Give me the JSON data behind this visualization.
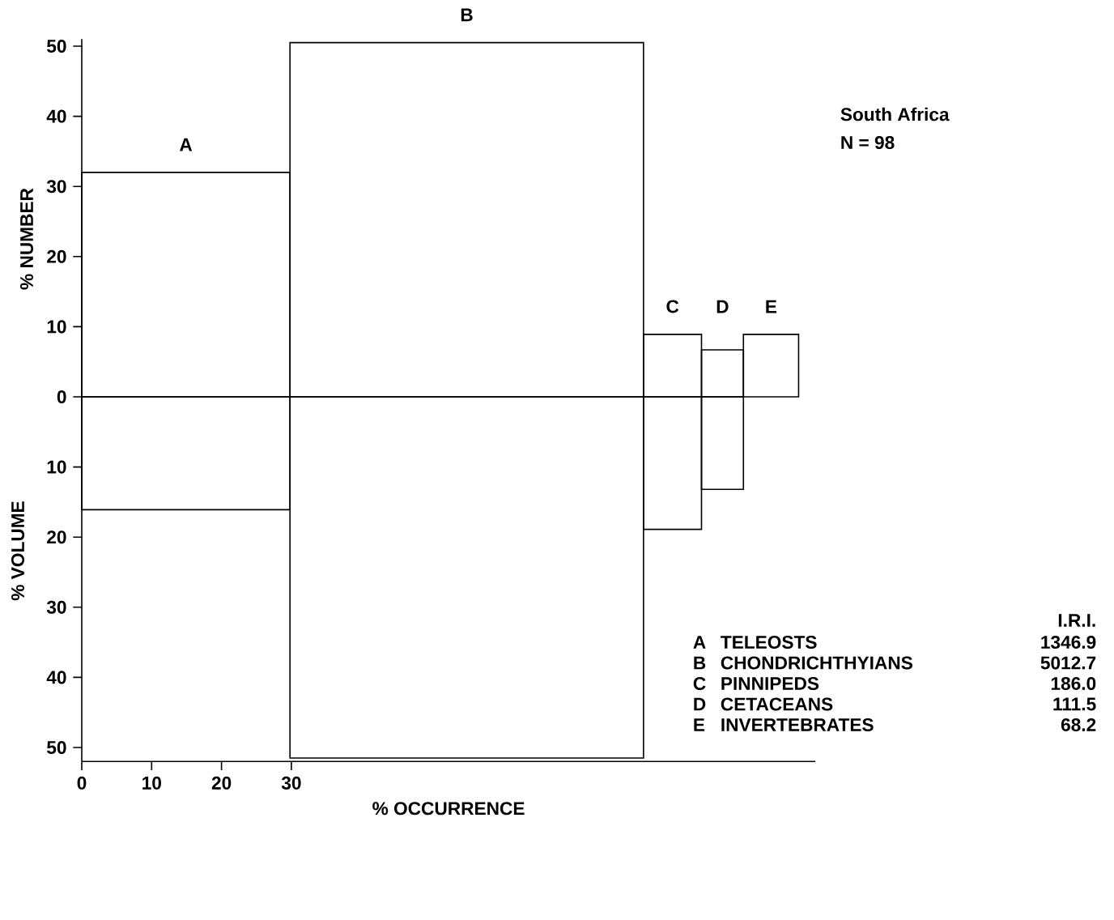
{
  "chart_data": {
    "type": "histogram",
    "xlabel": "% OCCURRENCE",
    "ylabel": "% NUMBER",
    "bins": [
      0,
      29.8,
      80.4,
      88.7,
      94.7,
      102.6
    ],
    "series": [
      {
        "color": "#000000",
        "values": [
          32,
          50.5,
          8.9,
          6.7,
          8.9
        ]
      },
      {
        "color": "#000000",
        "values": [
          -16.1,
          -51.5,
          -18.9,
          -13.2,
          null
        ]
      }
    ],
    "xlim": [
      0,
      105
    ],
    "xticks": [
      0,
      10,
      20,
      30
    ],
    "ylim": [
      -52,
      51
    ],
    "yticks": [
      {
        "value": -50,
        "label": "50"
      },
      {
        "value": -40,
        "label": "40"
      },
      {
        "value": -30,
        "label": "30"
      },
      {
        "value": -20,
        "label": "20"
      },
      {
        "value": -10,
        "label": "10"
      },
      0,
      10,
      20,
      30,
      40,
      50
    ],
    "grid": false,
    "annotations": [
      "South Africa",
      "N = 98",
      "A",
      "B",
      "C",
      "D",
      "E",
      "% VOLUME",
      "I.R.I.",
      "A",
      "TELEOSTS",
      "1346.9",
      "B",
      "CHONDRICHTHYIANS",
      "5012.7",
      "C",
      "PINNIPEDS",
      "186.0",
      "D",
      "CETACEANS",
      "111.5",
      "E",
      "INVERTEBRATES",
      "68.2"
    ]
  }
}
